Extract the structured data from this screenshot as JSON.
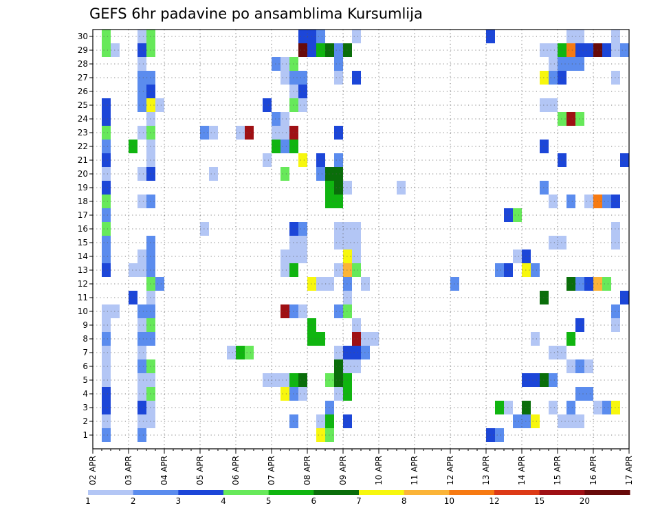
{
  "chart_data": {
    "type": "heatmap",
    "title": "GEFS 6hr padavine po ansamblima Kursumlija",
    "xlabel": "",
    "ylabel": "",
    "x_ticks": [
      "02 APR",
      "03 APR",
      "04 APR",
      "05 APR",
      "06 APR",
      "07 APR",
      "08 APR",
      "09 APR",
      "10 APR",
      "11 APR",
      "12 APR",
      "13 APR",
      "14 APR",
      "15 APR",
      "16 APR",
      "17 APR"
    ],
    "y_ticks": [
      "1",
      "2",
      "3",
      "4",
      "5",
      "6",
      "7",
      "8",
      "9",
      "10",
      "11",
      "12",
      "13",
      "14",
      "15",
      "16",
      "17",
      "18",
      "19",
      "20",
      "21",
      "22",
      "23",
      "24",
      "25",
      "26",
      "27",
      "28",
      "29",
      "30"
    ],
    "ylim": [
      0,
      30.5
    ],
    "time_steps_6h": 60,
    "grid": true,
    "legend": {
      "position": "bottom",
      "labels": [
        "1",
        "2",
        "3",
        "4",
        "5",
        "6",
        "7",
        "8",
        "10",
        "12",
        "15",
        "20"
      ],
      "colors": [
        "#b3c6f5",
        "#5b8cee",
        "#1c46d8",
        "#67e95a",
        "#10b510",
        "#0a6e0a",
        "#f7f70e",
        "#fbb438",
        "#f77a12",
        "#dd3a16",
        "#9f1014",
        "#680a0a"
      ]
    },
    "cells": [
      [
        1,
        30,
        4
      ],
      [
        1,
        29,
        4
      ],
      [
        1,
        25,
        3
      ],
      [
        1,
        24,
        3
      ],
      [
        1,
        23,
        4
      ],
      [
        1,
        22,
        2
      ],
      [
        1,
        21,
        3
      ],
      [
        1,
        20,
        1
      ],
      [
        1,
        19,
        3
      ],
      [
        1,
        18,
        4
      ],
      [
        1,
        17,
        2
      ],
      [
        1,
        16,
        4
      ],
      [
        1,
        15,
        2
      ],
      [
        1,
        14,
        2
      ],
      [
        1,
        13,
        3
      ],
      [
        1,
        10,
        1
      ],
      [
        1,
        9,
        1
      ],
      [
        1,
        8,
        2
      ],
      [
        1,
        7,
        1
      ],
      [
        1,
        6,
        1
      ],
      [
        1,
        5,
        1
      ],
      [
        1,
        4,
        3
      ],
      [
        1,
        3,
        3
      ],
      [
        1,
        2,
        1
      ],
      [
        1,
        1,
        2
      ],
      [
        2,
        29,
        1
      ],
      [
        2,
        10,
        1
      ],
      [
        4,
        22,
        5
      ],
      [
        4,
        13,
        1
      ],
      [
        4,
        11,
        3
      ],
      [
        5,
        30,
        1
      ],
      [
        5,
        29,
        3
      ],
      [
        5,
        28,
        1
      ],
      [
        5,
        27,
        2
      ],
      [
        5,
        26,
        2
      ],
      [
        5,
        25,
        2
      ],
      [
        5,
        23,
        1
      ],
      [
        5,
        20,
        1
      ],
      [
        5,
        18,
        1
      ],
      [
        5,
        14,
        1
      ],
      [
        5,
        13,
        1
      ],
      [
        5,
        10,
        2
      ],
      [
        5,
        9,
        1
      ],
      [
        5,
        8,
        2
      ],
      [
        5,
        7,
        1
      ],
      [
        5,
        6,
        2
      ],
      [
        5,
        5,
        1
      ],
      [
        5,
        4,
        1
      ],
      [
        5,
        3,
        3
      ],
      [
        5,
        2,
        1
      ],
      [
        5,
        1,
        2
      ],
      [
        6,
        30,
        4
      ],
      [
        6,
        29,
        4
      ],
      [
        6,
        27,
        2
      ],
      [
        6,
        26,
        3
      ],
      [
        6,
        25,
        7
      ],
      [
        6,
        24,
        1
      ],
      [
        6,
        23,
        4
      ],
      [
        6,
        22,
        1
      ],
      [
        6,
        21,
        1
      ],
      [
        6,
        20,
        3
      ],
      [
        6,
        18,
        2
      ],
      [
        6,
        15,
        2
      ],
      [
        6,
        14,
        2
      ],
      [
        6,
        13,
        2
      ],
      [
        6,
        12,
        4
      ],
      [
        6,
        11,
        1
      ],
      [
        6,
        10,
        2
      ],
      [
        6,
        9,
        4
      ],
      [
        6,
        8,
        2
      ],
      [
        6,
        6,
        4
      ],
      [
        6,
        5,
        1
      ],
      [
        6,
        4,
        4
      ],
      [
        6,
        3,
        1
      ],
      [
        6,
        2,
        1
      ],
      [
        7,
        25,
        1
      ],
      [
        7,
        12,
        2
      ],
      [
        12,
        23,
        2
      ],
      [
        13,
        23,
        1
      ],
      [
        13,
        20,
        1
      ],
      [
        12,
        16,
        1
      ],
      [
        15,
        7,
        1
      ],
      [
        16,
        23,
        1
      ],
      [
        16,
        7,
        5
      ],
      [
        17,
        23,
        11
      ],
      [
        17,
        7,
        4
      ],
      [
        19,
        25,
        3
      ],
      [
        19,
        21,
        1
      ],
      [
        19,
        5,
        1
      ],
      [
        20,
        28,
        2
      ],
      [
        20,
        24,
        2
      ],
      [
        20,
        23,
        1
      ],
      [
        20,
        22,
        5
      ],
      [
        20,
        5,
        1
      ],
      [
        21,
        28,
        1
      ],
      [
        21,
        27,
        1
      ],
      [
        21,
        24,
        1
      ],
      [
        21,
        23,
        1
      ],
      [
        21,
        22,
        2
      ],
      [
        21,
        20,
        4
      ],
      [
        21,
        14,
        1
      ],
      [
        21,
        13,
        1
      ],
      [
        21,
        10,
        11
      ],
      [
        21,
        5,
        1
      ],
      [
        21,
        4,
        7
      ],
      [
        22,
        28,
        4
      ],
      [
        22,
        27,
        2
      ],
      [
        22,
        26,
        1
      ],
      [
        22,
        25,
        4
      ],
      [
        22,
        23,
        11
      ],
      [
        22,
        22,
        5
      ],
      [
        22,
        16,
        3
      ],
      [
        22,
        15,
        1
      ],
      [
        22,
        14,
        1
      ],
      [
        22,
        13,
        5
      ],
      [
        22,
        10,
        2
      ],
      [
        22,
        5,
        5
      ],
      [
        22,
        4,
        2
      ],
      [
        22,
        2,
        2
      ],
      [
        23,
        30,
        3
      ],
      [
        23,
        29,
        12
      ],
      [
        23,
        27,
        2
      ],
      [
        23,
        26,
        3
      ],
      [
        23,
        25,
        1
      ],
      [
        23,
        21,
        7
      ],
      [
        23,
        16,
        2
      ],
      [
        23,
        15,
        1
      ],
      [
        23,
        14,
        1
      ],
      [
        23,
        10,
        1
      ],
      [
        23,
        5,
        6
      ],
      [
        23,
        4,
        1
      ],
      [
        24,
        30,
        3
      ],
      [
        24,
        29,
        3
      ],
      [
        24,
        12,
        7
      ],
      [
        24,
        9,
        5
      ],
      [
        24,
        8,
        5
      ],
      [
        25,
        30,
        2
      ],
      [
        25,
        29,
        5
      ],
      [
        25,
        21,
        3
      ],
      [
        25,
        20,
        2
      ],
      [
        25,
        12,
        1
      ],
      [
        25,
        8,
        5
      ],
      [
        25,
        2,
        1
      ],
      [
        25,
        1,
        7
      ],
      [
        26,
        29,
        6
      ],
      [
        26,
        20,
        6
      ],
      [
        26,
        19,
        5
      ],
      [
        26,
        18,
        5
      ],
      [
        26,
        12,
        1
      ],
      [
        26,
        5,
        4
      ],
      [
        26,
        3,
        2
      ],
      [
        26,
        2,
        5
      ],
      [
        26,
        1,
        4
      ],
      [
        27,
        29,
        2
      ],
      [
        27,
        28,
        2
      ],
      [
        27,
        27,
        1
      ],
      [
        27,
        23,
        3
      ],
      [
        27,
        21,
        2
      ],
      [
        27,
        20,
        6
      ],
      [
        27,
        19,
        6
      ],
      [
        27,
        18,
        5
      ],
      [
        27,
        16,
        1
      ],
      [
        27,
        15,
        1
      ],
      [
        27,
        13,
        1
      ],
      [
        27,
        10,
        2
      ],
      [
        27,
        7,
        1
      ],
      [
        27,
        6,
        6
      ],
      [
        27,
        5,
        6
      ],
      [
        27,
        4,
        1
      ],
      [
        28,
        29,
        6
      ],
      [
        28,
        19,
        1
      ],
      [
        28,
        16,
        1
      ],
      [
        28,
        15,
        1
      ],
      [
        28,
        14,
        7
      ],
      [
        28,
        13,
        8
      ],
      [
        28,
        12,
        2
      ],
      [
        28,
        11,
        1
      ],
      [
        28,
        10,
        4
      ],
      [
        28,
        7,
        3
      ],
      [
        28,
        6,
        1
      ],
      [
        28,
        5,
        5
      ],
      [
        28,
        4,
        5
      ],
      [
        28,
        2,
        3
      ],
      [
        29,
        30,
        1
      ],
      [
        29,
        27,
        3
      ],
      [
        29,
        16,
        1
      ],
      [
        29,
        15,
        1
      ],
      [
        29,
        14,
        1
      ],
      [
        29,
        13,
        4
      ],
      [
        29,
        9,
        1
      ],
      [
        29,
        8,
        11
      ],
      [
        29,
        7,
        3
      ],
      [
        29,
        6,
        1
      ],
      [
        30,
        12,
        1
      ],
      [
        30,
        8,
        1
      ],
      [
        30,
        7,
        2
      ],
      [
        31,
        8,
        1
      ],
      [
        34,
        19,
        1
      ],
      [
        40,
        12,
        2
      ],
      [
        44,
        30,
        3
      ],
      [
        44,
        1,
        3
      ],
      [
        45,
        13,
        2
      ],
      [
        45,
        3,
        5
      ],
      [
        45,
        1,
        2
      ],
      [
        46,
        13,
        3
      ],
      [
        46,
        3,
        1
      ],
      [
        46,
        17,
        3
      ],
      [
        47,
        17,
        4
      ],
      [
        47,
        14,
        1
      ],
      [
        47,
        2,
        2
      ],
      [
        48,
        14,
        3
      ],
      [
        48,
        13,
        7
      ],
      [
        48,
        5,
        3
      ],
      [
        48,
        3,
        6
      ],
      [
        48,
        2,
        2
      ],
      [
        49,
        13,
        2
      ],
      [
        49,
        8,
        1
      ],
      [
        49,
        5,
        3
      ],
      [
        49,
        2,
        7
      ],
      [
        50,
        29,
        1
      ],
      [
        50,
        27,
        7
      ],
      [
        50,
        25,
        1
      ],
      [
        50,
        22,
        3
      ],
      [
        50,
        19,
        2
      ],
      [
        50,
        11,
        6
      ],
      [
        50,
        5,
        6
      ],
      [
        51,
        29,
        1
      ],
      [
        51,
        28,
        1
      ],
      [
        51,
        27,
        2
      ],
      [
        51,
        25,
        1
      ],
      [
        51,
        18,
        1
      ],
      [
        51,
        15,
        1
      ],
      [
        51,
        7,
        1
      ],
      [
        51,
        5,
        2
      ],
      [
        51,
        3,
        1
      ],
      [
        52,
        29,
        5
      ],
      [
        52,
        28,
        2
      ],
      [
        52,
        27,
        3
      ],
      [
        52,
        24,
        4
      ],
      [
        52,
        21,
        3
      ],
      [
        52,
        15,
        1
      ],
      [
        52,
        7,
        1
      ],
      [
        52,
        2,
        1
      ],
      [
        53,
        30,
        1
      ],
      [
        53,
        29,
        9
      ],
      [
        53,
        28,
        2
      ],
      [
        53,
        24,
        11
      ],
      [
        53,
        18,
        2
      ],
      [
        53,
        12,
        6
      ],
      [
        53,
        8,
        5
      ],
      [
        53,
        6,
        1
      ],
      [
        53,
        3,
        2
      ],
      [
        53,
        2,
        1
      ],
      [
        54,
        30,
        1
      ],
      [
        54,
        29,
        3
      ],
      [
        54,
        28,
        2
      ],
      [
        54,
        24,
        4
      ],
      [
        54,
        12,
        2
      ],
      [
        54,
        9,
        3
      ],
      [
        54,
        6,
        2
      ],
      [
        54,
        4,
        2
      ],
      [
        54,
        2,
        1
      ],
      [
        55,
        29,
        3
      ],
      [
        55,
        18,
        1
      ],
      [
        55,
        12,
        3
      ],
      [
        55,
        6,
        1
      ],
      [
        55,
        4,
        2
      ],
      [
        56,
        29,
        12
      ],
      [
        56,
        18,
        9
      ],
      [
        56,
        12,
        8
      ],
      [
        56,
        3,
        1
      ],
      [
        57,
        29,
        3
      ],
      [
        57,
        18,
        2
      ],
      [
        57,
        12,
        4
      ],
      [
        57,
        3,
        2
      ],
      [
        58,
        30,
        1
      ],
      [
        58,
        29,
        1
      ],
      [
        58,
        27,
        1
      ],
      [
        58,
        18,
        3
      ],
      [
        58,
        16,
        1
      ],
      [
        58,
        15,
        1
      ],
      [
        58,
        10,
        2
      ],
      [
        58,
        9,
        1
      ],
      [
        58,
        3,
        7
      ],
      [
        59,
        29,
        2
      ],
      [
        59,
        21,
        3
      ],
      [
        59,
        11,
        3
      ]
    ]
  }
}
